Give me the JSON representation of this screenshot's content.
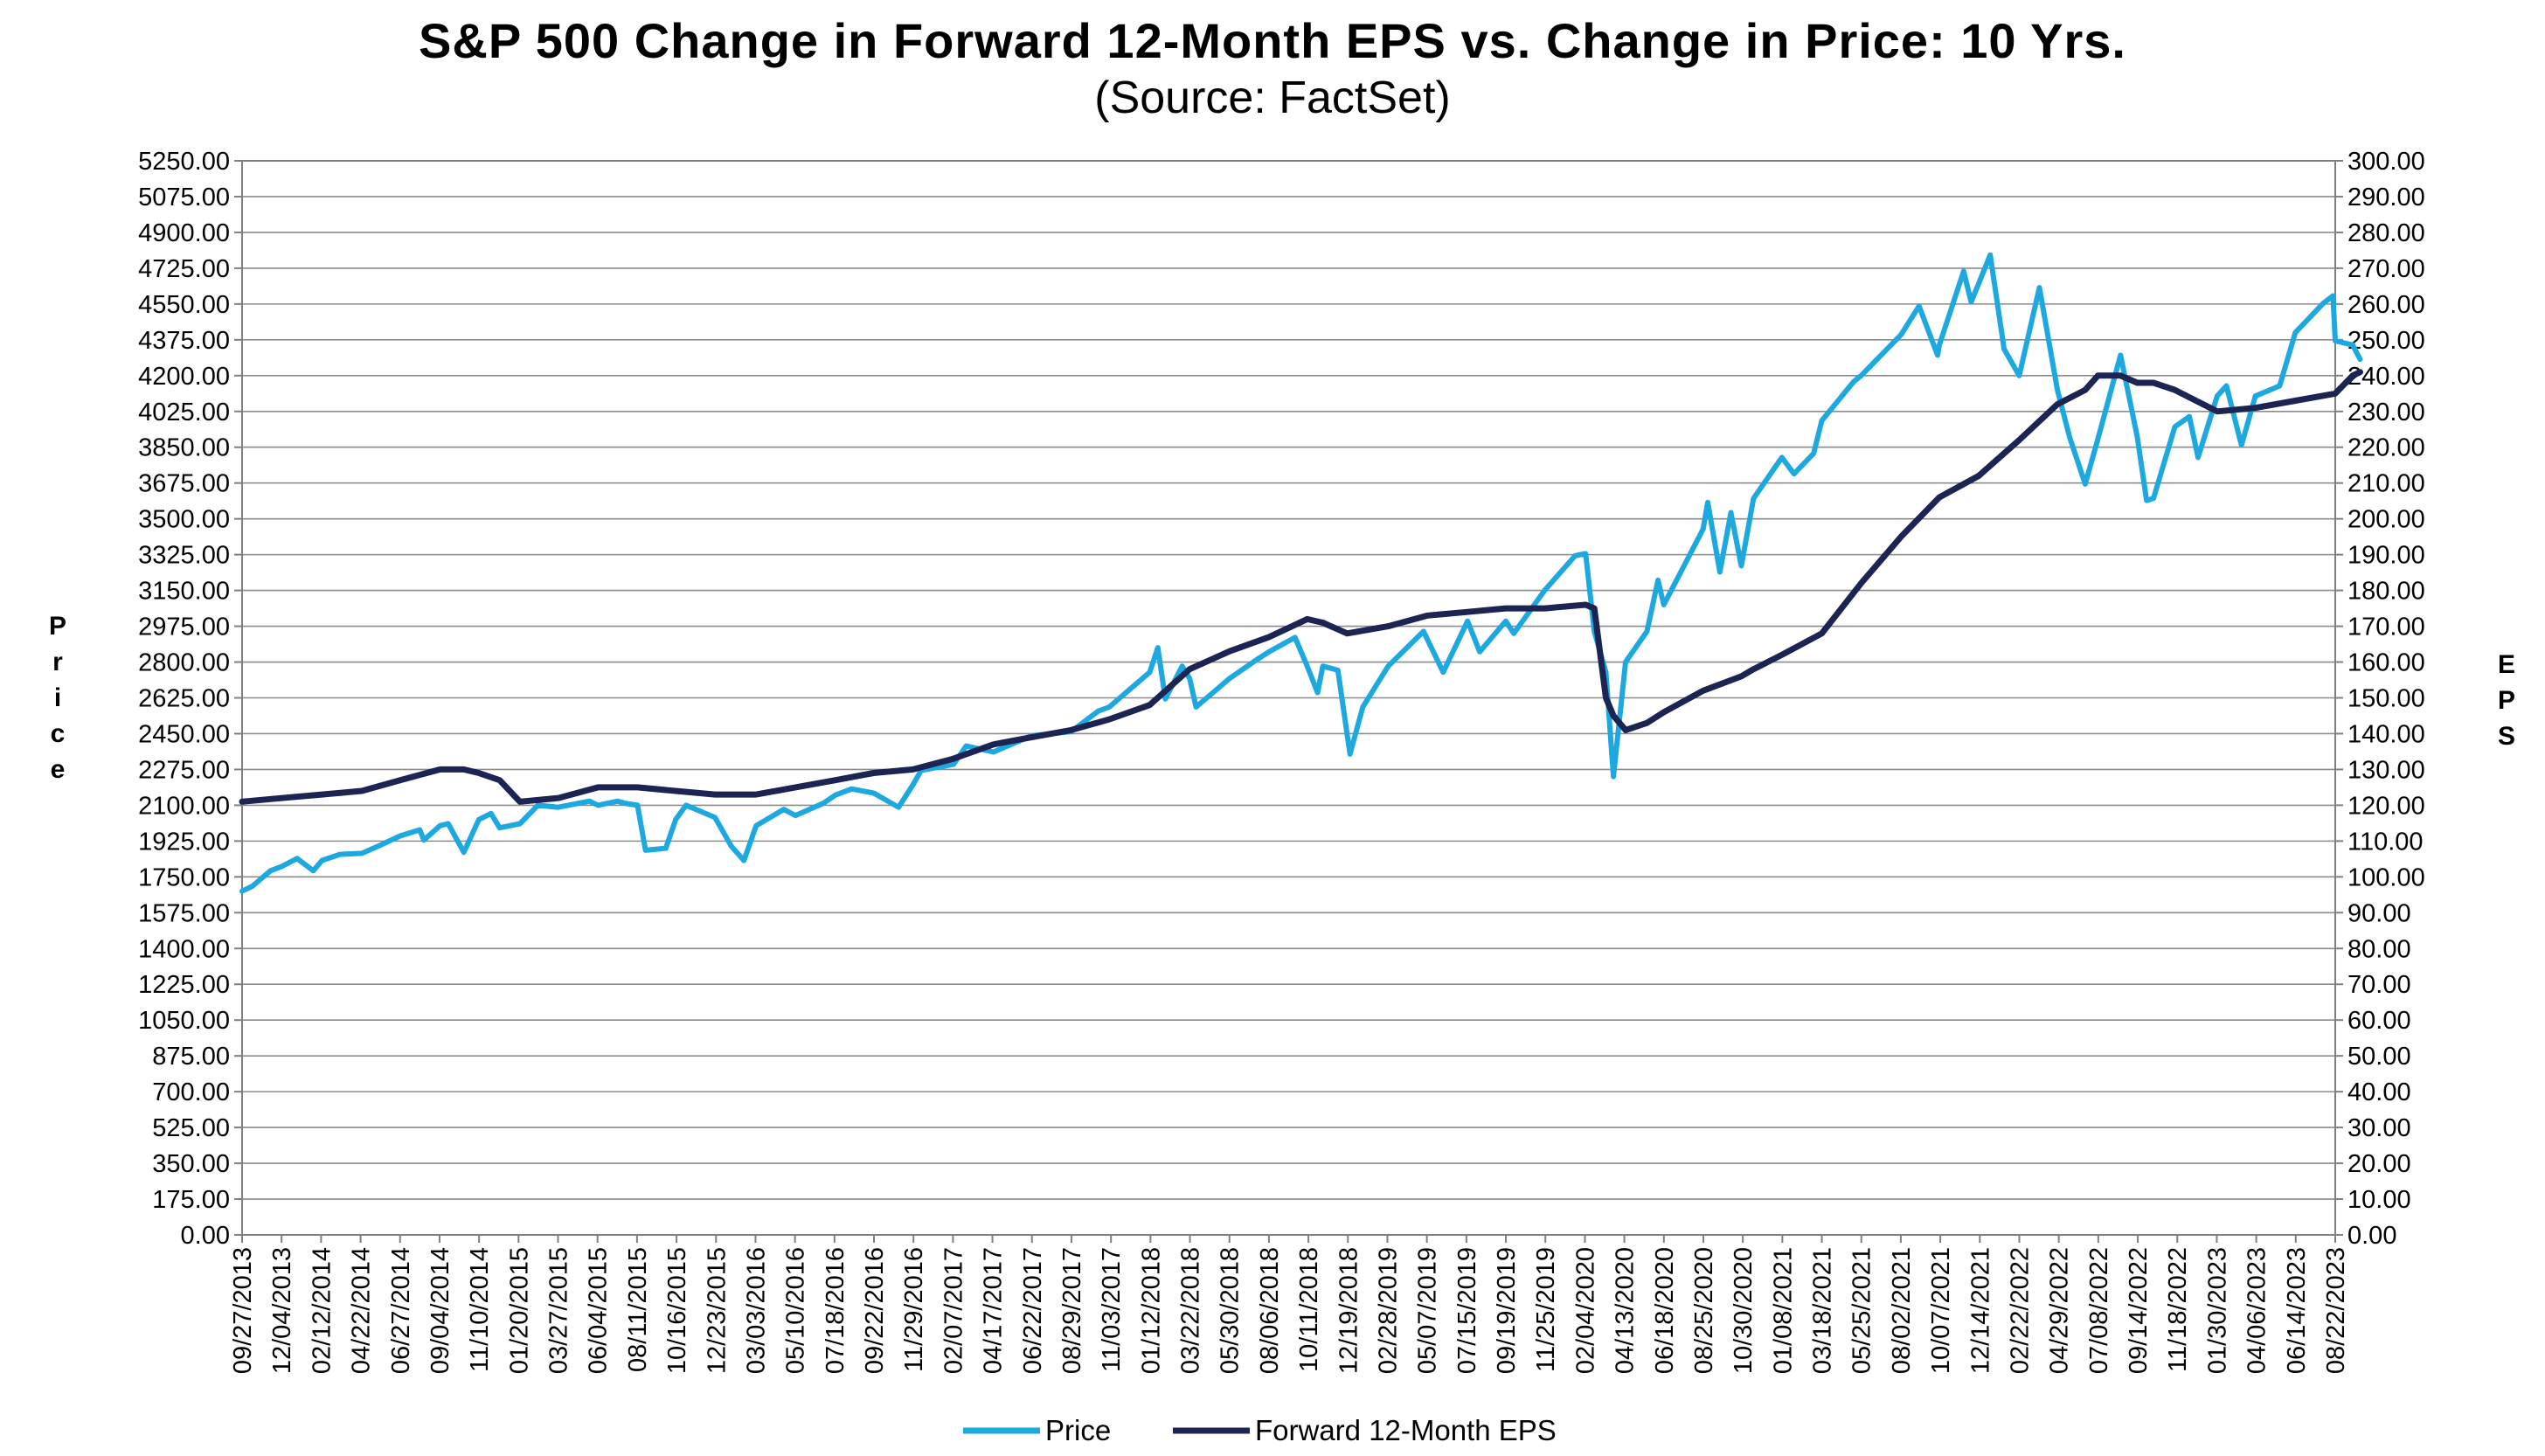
{
  "chart_data": {
    "type": "line",
    "title": "S&P 500 Change in Forward 12-Month EPS vs. Change in Price: 10 Yrs.",
    "subtitle": "(Source: FactSet)",
    "ylabel": "Price",
    "y2label": "EPS",
    "ylim": [
      0,
      5250
    ],
    "y2lim": [
      0,
      300
    ],
    "legend_position": "bottom",
    "grid": true,
    "y_ticks": [
      "0.00",
      "175.00",
      "350.00",
      "525.00",
      "700.00",
      "875.00",
      "1050.00",
      "1225.00",
      "1400.00",
      "1575.00",
      "1750.00",
      "1925.00",
      "2100.00",
      "2275.00",
      "2450.00",
      "2625.00",
      "2800.00",
      "2975.00",
      "3150.00",
      "3325.00",
      "3500.00",
      "3675.00",
      "3850.00",
      "4025.00",
      "4200.00",
      "4375.00",
      "4550.00",
      "4725.00",
      "4900.00",
      "5075.00",
      "5250.00"
    ],
    "y2_ticks": [
      "0.00",
      "10.00",
      "20.00",
      "30.00",
      "40.00",
      "50.00",
      "60.00",
      "70.00",
      "80.00",
      "90.00",
      "100.00",
      "110.00",
      "120.00",
      "130.00",
      "140.00",
      "150.00",
      "160.00",
      "170.00",
      "180.00",
      "190.00",
      "200.00",
      "210.00",
      "220.00",
      "230.00",
      "240.00",
      "250.00",
      "260.00",
      "270.00",
      "280.00",
      "290.00",
      "300.00"
    ],
    "x_ticks": [
      "09/27/2013",
      "12/04/2013",
      "02/12/2014",
      "04/22/2014",
      "06/27/2014",
      "09/04/2014",
      "11/10/2014",
      "01/20/2015",
      "03/27/2015",
      "06/04/2015",
      "08/11/2015",
      "10/16/2015",
      "12/23/2015",
      "03/03/2016",
      "05/10/2016",
      "07/18/2016",
      "09/22/2016",
      "11/29/2016",
      "02/07/2017",
      "04/17/2017",
      "06/22/2017",
      "08/29/2017",
      "11/03/2017",
      "01/12/2018",
      "03/22/2018",
      "05/30/2018",
      "08/06/2018",
      "10/11/2018",
      "12/19/2018",
      "02/28/2019",
      "05/07/2019",
      "07/15/2019",
      "09/19/2019",
      "11/25/2019",
      "02/04/2020",
      "04/13/2020",
      "06/18/2020",
      "08/25/2020",
      "10/30/2020",
      "01/08/2021",
      "03/18/2021",
      "05/25/2021",
      "08/02/2021",
      "10/07/2021",
      "12/14/2021",
      "02/22/2022",
      "04/29/2022",
      "07/08/2022",
      "09/14/2022",
      "11/18/2022",
      "01/30/2023",
      "04/06/2023",
      "06/14/2023",
      "08/22/2023"
    ],
    "series": [
      {
        "name": "Price",
        "axis": "left",
        "color": "#1ea8e0",
        "x": [
          "09/27/2013",
          "10/15/2013",
          "11/15/2013",
          "12/04/2013",
          "12/31/2013",
          "01/28/2014",
          "02/12/2014",
          "03/15/2014",
          "04/22/2014",
          "05/20/2014",
          "06/27/2014",
          "07/31/2014",
          "08/07/2014",
          "09/04/2014",
          "09/18/2014",
          "10/15/2014",
          "11/10/2014",
          "12/01/2014",
          "12/16/2014",
          "01/20/2015",
          "02/20/2015",
          "03/27/2015",
          "05/20/2015",
          "06/04/2015",
          "07/08/2015",
          "07/20/2015",
          "08/11/2015",
          "08/25/2015",
          "09/29/2015",
          "10/16/2015",
          "11/03/2015",
          "12/23/2015",
          "01/20/2016",
          "02/11/2016",
          "03/03/2016",
          "04/20/2016",
          "05/10/2016",
          "06/27/2016",
          "07/18/2016",
          "08/15/2016",
          "09/22/2016",
          "11/04/2016",
          "11/29/2016",
          "12/13/2016",
          "02/07/2017",
          "03/01/2017",
          "04/17/2017",
          "06/22/2017",
          "08/29/2017",
          "10/15/2017",
          "11/03/2017",
          "01/12/2018",
          "01/26/2018",
          "02/08/2018",
          "03/09/2018",
          "03/22/2018",
          "04/02/2018",
          "05/30/2018",
          "07/15/2018",
          "08/06/2018",
          "09/20/2018",
          "10/11/2018",
          "10/29/2018",
          "11/07/2018",
          "12/03/2018",
          "12/24/2018",
          "01/15/2019",
          "02/28/2019",
          "04/30/2019",
          "06/03/2019",
          "07/15/2019",
          "08/05/2019",
          "09/19/2019",
          "10/03/2019",
          "11/25/2019",
          "01/17/2020",
          "02/04/2020",
          "02/19/2020",
          "03/10/2020",
          "03/23/2020",
          "04/13/2020",
          "05/20/2020",
          "06/08/2020",
          "06/18/2020",
          "08/25/2020",
          "09/02/2020",
          "09/23/2020",
          "10/12/2020",
          "10/30/2020",
          "11/20/2020",
          "01/08/2021",
          "01/29/2021",
          "03/04/2021",
          "03/18/2021",
          "05/12/2021",
          "05/25/2021",
          "08/02/2021",
          "09/02/2021",
          "10/04/2021",
          "10/07/2021",
          "11/18/2021",
          "12/01/2021",
          "12/14/2021",
          "01/03/2022",
          "01/27/2022",
          "02/22/2022",
          "03/29/2022",
          "04/29/2022",
          "05/20/2022",
          "06/16/2022",
          "07/08/2022",
          "08/16/2022",
          "09/14/2022",
          "09/30/2022",
          "10/12/2022",
          "11/18/2022",
          "12/13/2022",
          "12/28/2022",
          "01/30/2023",
          "02/15/2023",
          "03/13/2023",
          "04/06/2023",
          "05/18/2023",
          "06/14/2023",
          "07/31/2023",
          "08/18/2023",
          "08/22/2023",
          "09/21/2023",
          "10/04/2023"
        ],
        "y": [
          1680,
          1705,
          1780,
          1800,
          1840,
          1780,
          1830,
          1860,
          1865,
          1900,
          1950,
          1980,
          1930,
          2000,
          2010,
          1870,
          2030,
          2060,
          1990,
          2010,
          2100,
          2090,
          2120,
          2100,
          2120,
          2110,
          2100,
          1880,
          1890,
          2030,
          2100,
          2040,
          1900,
          1830,
          2000,
          2080,
          2050,
          2110,
          2150,
          2180,
          2160,
          2090,
          2200,
          2270,
          2300,
          2390,
          2360,
          2440,
          2460,
          2560,
          2580,
          2750,
          2870,
          2620,
          2780,
          2720,
          2580,
          2720,
          2810,
          2850,
          2920,
          2780,
          2650,
          2780,
          2760,
          2350,
          2580,
          2780,
          2950,
          2750,
          3000,
          2850,
          3000,
          2940,
          3150,
          3320,
          3330,
          2950,
          2750,
          2240,
          2800,
          2950,
          3200,
          3080,
          3450,
          3580,
          3240,
          3530,
          3270,
          3600,
          3800,
          3720,
          3820,
          3980,
          4170,
          4200,
          4400,
          4540,
          4300,
          4350,
          4710,
          4560,
          4650,
          4790,
          4330,
          4200,
          4630,
          4130,
          3900,
          3670,
          3890,
          4300,
          3900,
          3590,
          3600,
          3950,
          4000,
          3800,
          4100,
          4150,
          3860,
          4100,
          4150,
          4410,
          4550,
          4590,
          4370,
          4350,
          4280
        ]
      },
      {
        "name": "Forward 12-Month EPS",
        "axis": "right",
        "color": "#1b2452",
        "x": [
          "09/27/2013",
          "12/04/2013",
          "02/12/2014",
          "04/22/2014",
          "06/27/2014",
          "09/04/2014",
          "10/15/2014",
          "11/10/2014",
          "12/16/2014",
          "01/20/2015",
          "03/27/2015",
          "06/04/2015",
          "08/11/2015",
          "10/16/2015",
          "12/23/2015",
          "01/20/2016",
          "03/03/2016",
          "05/10/2016",
          "07/18/2016",
          "09/22/2016",
          "11/29/2016",
          "02/07/2017",
          "04/17/2017",
          "06/22/2017",
          "08/29/2017",
          "11/03/2017",
          "01/12/2018",
          "03/22/2018",
          "05/30/2018",
          "08/06/2018",
          "10/11/2018",
          "11/07/2018",
          "12/19/2018",
          "02/28/2019",
          "05/07/2019",
          "07/15/2019",
          "09/19/2019",
          "11/25/2019",
          "02/04/2020",
          "02/19/2020",
          "03/10/2020",
          "03/23/2020",
          "04/13/2020",
          "05/20/2020",
          "06/18/2020",
          "08/25/2020",
          "10/30/2020",
          "11/20/2020",
          "01/08/2021",
          "03/18/2021",
          "05/25/2021",
          "08/02/2021",
          "10/07/2021",
          "12/14/2021",
          "02/22/2022",
          "04/29/2022",
          "06/16/2022",
          "07/08/2022",
          "08/16/2022",
          "09/14/2022",
          "10/12/2022",
          "11/18/2022",
          "01/30/2023",
          "04/06/2023",
          "06/14/2023",
          "08/22/2023",
          "09/21/2023",
          "10/04/2023"
        ],
        "y": [
          121,
          122,
          123,
          124,
          127,
          130,
          130,
          129,
          127,
          121,
          122,
          125,
          125,
          124,
          123,
          123,
          123,
          125,
          127,
          129,
          130,
          133,
          137,
          139,
          141,
          144,
          148,
          158,
          163,
          167,
          172,
          171,
          168,
          170,
          173,
          174,
          175,
          175,
          176,
          175,
          150,
          145,
          141,
          143,
          146,
          152,
          156,
          158,
          162,
          168,
          182,
          195,
          206,
          212,
          222,
          232,
          236,
          240,
          240,
          238,
          238,
          236,
          230,
          231,
          233,
          235,
          240,
          241
        ]
      }
    ]
  }
}
